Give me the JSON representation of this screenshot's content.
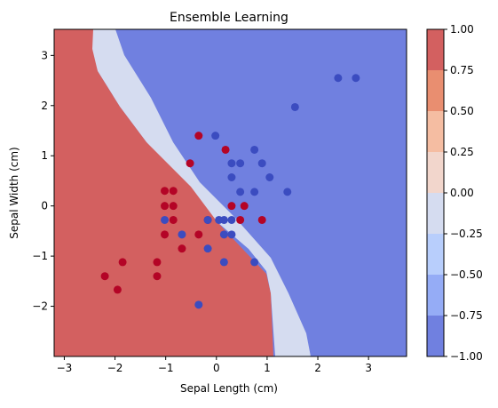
{
  "chart_data": {
    "type": "scatter",
    "title": "Ensemble Learning",
    "xlabel": "Sepal Length (cm)",
    "ylabel": "Sepal Width (cm)",
    "xlim": [
      -3.2,
      3.75
    ],
    "ylim": [
      -3.0,
      3.52
    ],
    "x_ticks": [
      -3,
      -2,
      -1,
      0,
      1,
      2,
      3
    ],
    "y_ticks": [
      -2,
      -1,
      0,
      1,
      2,
      3
    ],
    "grid": false,
    "colorbar": {
      "ticks": [
        "-1.00",
        "-0.75",
        "-0.50",
        "-0.25",
        "0.00",
        "0.25",
        "0.50",
        "0.75",
        "1.00"
      ],
      "band_colors": [
        "#7080e0",
        "#95acf6",
        "#b8cefc",
        "#d5dcf0",
        "#f2d6cc",
        "#f5bda2",
        "#e98e70",
        "#d36060"
      ]
    },
    "regions": {
      "negative_color": "#7080e0",
      "boundary_color": "#d5dcf0",
      "positive_color": "#d36060"
    },
    "series": [
      {
        "color": "#b40426",
        "points": [
          [
            -0.35,
            1.4
          ],
          [
            0.18,
            1.12
          ],
          [
            -0.52,
            0.85
          ],
          [
            -1.02,
            0.3
          ],
          [
            -0.85,
            0.3
          ],
          [
            -1.02,
            0.0
          ],
          [
            -0.85,
            0.0
          ],
          [
            -0.85,
            -0.28
          ],
          [
            -0.17,
            -0.28
          ],
          [
            0.3,
            0.0
          ],
          [
            0.55,
            0.0
          ],
          [
            0.47,
            -0.28
          ],
          [
            0.9,
            -0.28
          ],
          [
            -1.02,
            -0.57
          ],
          [
            -0.35,
            -0.57
          ],
          [
            -0.68,
            -0.85
          ],
          [
            -1.85,
            -1.12
          ],
          [
            -1.17,
            -1.12
          ],
          [
            -2.2,
            -1.4
          ],
          [
            -1.17,
            -1.4
          ],
          [
            -1.95,
            -1.67
          ]
        ]
      },
      {
        "color": "#3b4cc0",
        "points": [
          [
            2.4,
            2.55
          ],
          [
            2.75,
            2.55
          ],
          [
            1.55,
            1.97
          ],
          [
            -0.02,
            1.4
          ],
          [
            0.75,
            1.12
          ],
          [
            0.3,
            0.85
          ],
          [
            0.47,
            0.85
          ],
          [
            0.9,
            0.85
          ],
          [
            0.3,
            0.57
          ],
          [
            1.05,
            0.57
          ],
          [
            0.47,
            0.28
          ],
          [
            0.75,
            0.28
          ],
          [
            1.4,
            0.28
          ],
          [
            -1.02,
            -0.28
          ],
          [
            -0.17,
            -0.28
          ],
          [
            0.05,
            -0.28
          ],
          [
            0.15,
            -0.28
          ],
          [
            0.3,
            -0.28
          ],
          [
            -0.68,
            -0.57
          ],
          [
            0.15,
            -0.57
          ],
          [
            0.3,
            -0.57
          ],
          [
            -0.17,
            -0.85
          ],
          [
            0.15,
            -1.12
          ],
          [
            0.75,
            -1.12
          ],
          [
            -0.35,
            -1.97
          ]
        ]
      }
    ]
  }
}
